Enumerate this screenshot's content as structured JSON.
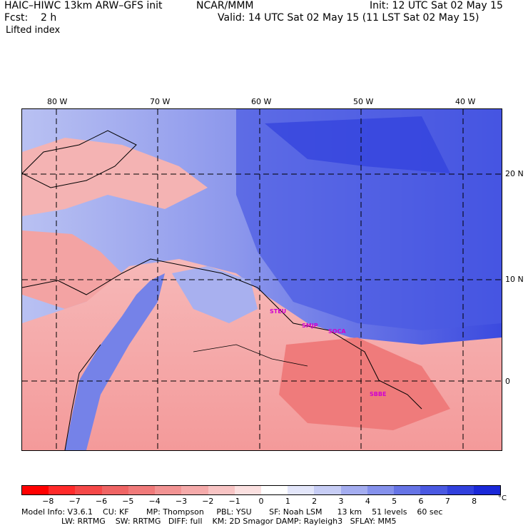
{
  "header": {
    "title": "HAIC–HIWC 13km ARW–GFS init",
    "org": "NCAR/MMM",
    "init": "Init: 12 UTC Sat 02 May 15",
    "fcst": "Fcst:    2 h",
    "valid": "Valid: 14 UTC Sat 02 May 15 (11 LST Sat 02 May 15)",
    "field": "Lifted index"
  },
  "map": {
    "lon_labels": [
      "80 W",
      "70 W",
      "60 W",
      "50 W",
      "40 W"
    ],
    "lat_labels": [
      "20 N",
      "10 N",
      "0"
    ],
    "places": [
      "STEU",
      "SMJP",
      "SOCA",
      "SBBE"
    ],
    "colors": {
      "ocean_stable": "#5d6fe8",
      "land_unstable": "#f2a0a0",
      "poi": "#d000d0"
    }
  },
  "colorbar": {
    "ticks": [
      "−8",
      "−7",
      "−6",
      "−5",
      "−4",
      "−3",
      "−2",
      "−1",
      "0",
      "1",
      "2",
      "3",
      "4",
      "5",
      "6",
      "7",
      "8"
    ],
    "unit": "°C",
    "colors": [
      "#ff0000",
      "#ff2a2a",
      "#f54848",
      "#ef6464",
      "#f07a7a",
      "#f29393",
      "#f5aaaa",
      "#f8c4c4",
      "#fbe0e0",
      "#ffffff",
      "#e3e6fa",
      "#c7cdf5",
      "#a4adf0",
      "#8591ec",
      "#6674e6",
      "#4a59e2",
      "#3140dd",
      "#1a28d8"
    ]
  },
  "footer": {
    "line1": "Model Info: V3.6.1    CU: KF       MP: Thompson     PBL: YSU       SF: Noah LSM      13 km    51 levels    60 sec",
    "line2": "                LW: RRTMG    SW: RRTMG   DIFF: full    KM: 2D Smagor DAMP: Rayleigh3   SFLAY: MM5"
  }
}
